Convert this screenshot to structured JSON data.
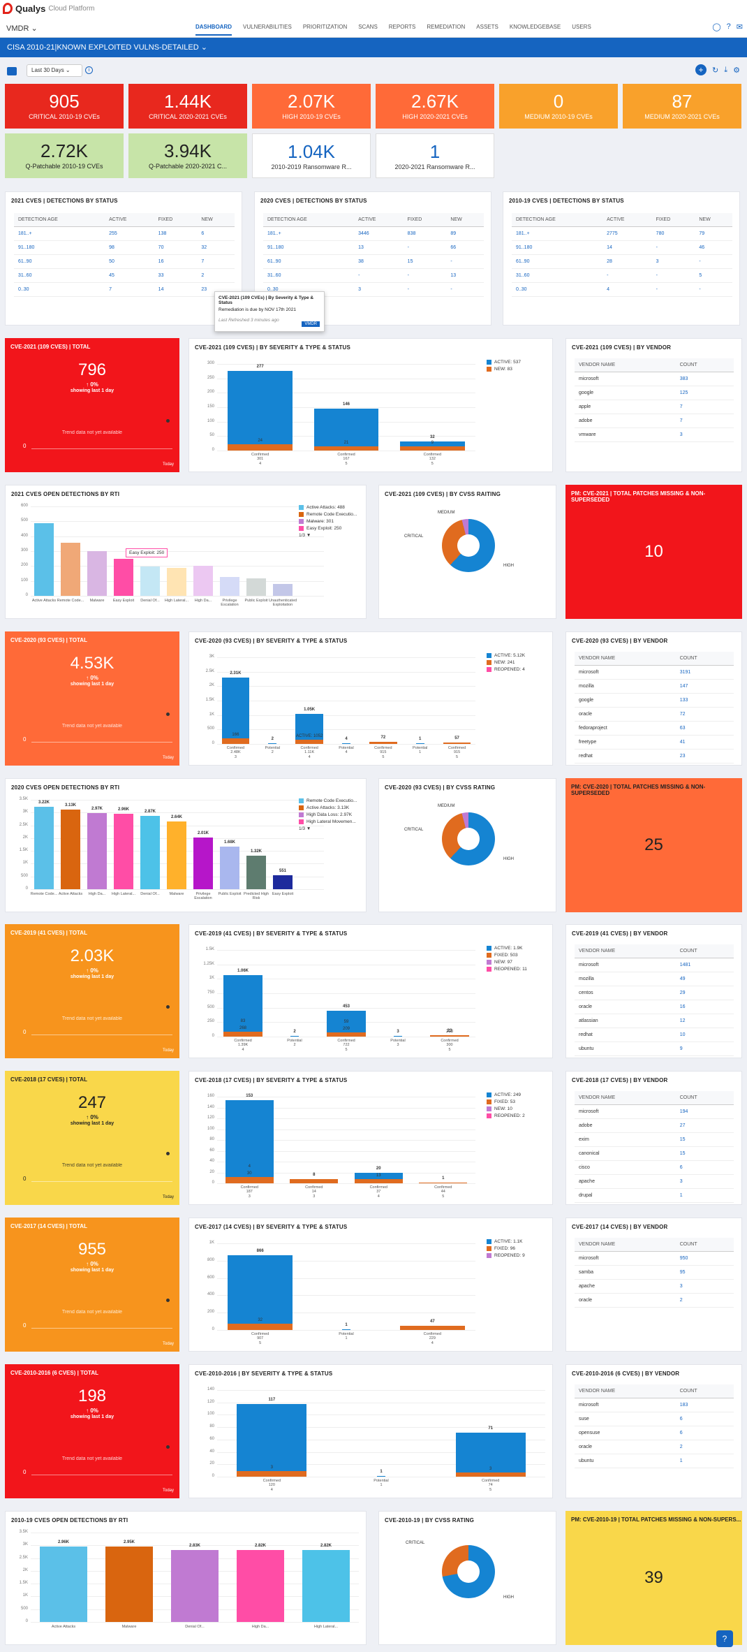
{
  "app": {
    "brand": "Qualys",
    "brand_sub": "Cloud Platform",
    "module": "VMDR ⌄"
  },
  "nav": [
    "DASHBOARD",
    "VULNERABILITIES",
    "PRIORITIZATION",
    "SCANS",
    "REPORTS",
    "REMEDIATION",
    "ASSETS",
    "KNOWLEDGEBASE",
    "USERS"
  ],
  "dashboard_title": "CISA 2010-21|KNOWN EXPLOITED VULNS-DETAILED ⌄",
  "range": "Last 30 Days ⌄",
  "kpis": [
    {
      "v": "905",
      "l": "CRITICAL 2010-19 CVEs",
      "c": "#e8281e"
    },
    {
      "v": "1.44K",
      "l": "CRITICAL 2020-2021 CVEs",
      "c": "#e8281e"
    },
    {
      "v": "2.07K",
      "l": "HIGH 2010-19 CVEs",
      "c": "#ff6a38"
    },
    {
      "v": "2.67K",
      "l": "HIGH 2020-2021 CVEs",
      "c": "#ff6a38"
    },
    {
      "v": "0",
      "l": "MEDIUM 2010-19 CVEs",
      "c": "#f9a12b"
    },
    {
      "v": "87",
      "l": "MEDIUM 2020-2021 CVEs",
      "c": "#f9a12b"
    },
    {
      "v": "2.72K",
      "l": "Q-Patchable 2010-19 CVEs",
      "c": "green"
    },
    {
      "v": "3.94K",
      "l": "Q-Patchable 2020-2021 C...",
      "c": "green"
    },
    {
      "v": "1.04K",
      "l": "2010-2019 Ransomware R...",
      "c": "lite"
    },
    {
      "v": "1",
      "l": "2020-2021 Ransomware R...",
      "c": "lite"
    }
  ],
  "status_tables": [
    {
      "title": "2021 CVES | DETECTIONS BY STATUS",
      "cols": [
        "DETECTION AGE",
        "ACTIVE",
        "FIXED",
        "NEW"
      ],
      "rows": [
        [
          "181..+",
          "255",
          "138",
          "6"
        ],
        [
          "91..180",
          "98",
          "70",
          "32"
        ],
        [
          "61..90",
          "50",
          "16",
          "7"
        ],
        [
          "31..60",
          "45",
          "33",
          "2"
        ],
        [
          "0..30",
          "7",
          "14",
          "23"
        ]
      ]
    },
    {
      "title": "2020 CVES | DETECTIONS BY STATUS",
      "cols": [
        "DETECTION AGE",
        "ACTIVE",
        "FIXED",
        "NEW"
      ],
      "rows": [
        [
          "181..+",
          "3446",
          "838",
          "89"
        ],
        [
          "91..180",
          "13",
          "-",
          "66"
        ],
        [
          "61..90",
          "38",
          "15",
          "-"
        ],
        [
          "31..60",
          "-",
          "-",
          "13"
        ],
        [
          "0..30",
          "3",
          "-",
          "-"
        ]
      ]
    },
    {
      "title": "2010-19 CVES | DETECTIONS BY STATUS",
      "cols": [
        "DETECTION AGE",
        "ACTIVE",
        "FIXED",
        "NEW"
      ],
      "rows": [
        [
          "181..+",
          "2775",
          "780",
          "79"
        ],
        [
          "91..180",
          "14",
          "-",
          "46"
        ],
        [
          "61..90",
          "28",
          "3",
          "-"
        ],
        [
          "31..60",
          "-",
          "-",
          "5"
        ],
        [
          "0..30",
          "4",
          "-",
          "-"
        ]
      ]
    }
  ],
  "tooltip": {
    "title": "CVE-2021 (109 CVEs) | By Severity & Type & Status",
    "body": "Remediation is due by NOV 17th 2021",
    "foot": "Last Refreshed 3 minutes ago",
    "btn": "VMDR"
  },
  "totals": [
    {
      "title": "CVE-2021 (109 CVES) | TOTAL",
      "value": "796",
      "c": "#f2151b"
    },
    {
      "title": "CVE-2020 (93 CVES) | TOTAL",
      "value": "4.53K",
      "c": "#ff6a38"
    },
    {
      "title": "CVE-2019 (41 CVES) | TOTAL",
      "value": "2.03K",
      "c": "#f7941d"
    },
    {
      "title": "CVE-2018 (17 CVES) | TOTAL",
      "value": "247",
      "c": "#f9d74a"
    },
    {
      "title": "CVE-2017 (14 CVES) | TOTAL",
      "value": "955",
      "c": "#f7941d"
    },
    {
      "title": "CVE-2010-2016 (6 CVES) | TOTAL",
      "value": "198",
      "c": "#f2151b"
    }
  ],
  "total_common": {
    "pct": "↑ 0%",
    "period": "showing last 1 day",
    "nodata": "Trend data not yet available",
    "today": "Today",
    "zero": "0"
  },
  "sev_charts": [
    {
      "title": "CVE-2021 (109 CVES) | BY SEVERITY & TYPE & STATUS",
      "legend": [
        "ACTIVE: 537",
        "NEW: 83"
      ],
      "yticks": [
        "300",
        "250",
        "200",
        "150",
        "100",
        "50",
        "0"
      ],
      "bars": [
        {
          "total": "277",
          "seg": [
            "24"
          ],
          "x": "Confirmed",
          "xv": "301",
          "g": "4"
        },
        {
          "total": "146",
          "seg": [
            "21"
          ],
          "x": "Confirmed",
          "xv": "167",
          "g": "5"
        },
        {
          "total": "32",
          "seg": [
            "9"
          ],
          "x": "Confirmed",
          "xv": "132",
          "g": "5"
        }
      ]
    },
    {
      "title": "CVE-2020 (93 CVES) | BY SEVERITY & TYPE & STATUS",
      "legend": [
        "ACTIVE: 5.12K",
        "NEW: 241",
        "REOPENED: 4"
      ],
      "yticks": [
        "3K",
        "2.5K",
        "2K",
        "1.5K",
        "1K",
        "500",
        "0"
      ],
      "bars": [
        {
          "total": "2.31K",
          "seg": [
            "166"
          ],
          "x": "Confirmed",
          "xv": "2.48K",
          "g": "3"
        },
        {
          "total": "2",
          "x": "Potential",
          "xv": "2",
          "g": ""
        },
        {
          "total": "1.05K",
          "seg": [
            "ACTIVE: 1052"
          ],
          "x": "Confirmed",
          "xv": "1.11K",
          "g": "4"
        },
        {
          "total": "4",
          "x": "Potential",
          "xv": "4",
          "g": ""
        },
        {
          "total": "72",
          "x": "Confirmed",
          "xv": "915",
          "g": "5"
        },
        {
          "total": "1",
          "x": "Potential",
          "xv": "1",
          "g": ""
        },
        {
          "total": "57",
          "x": "Confirmed",
          "xv": "915",
          "g": "5"
        }
      ]
    },
    {
      "title": "CVE-2019 (41 CVES) | BY SEVERITY & TYPE & STATUS",
      "legend": [
        "ACTIVE: 1.9K",
        "FIXED: 503",
        "NEW: 97",
        "REOPENED: 11"
      ],
      "yticks": [
        "1.5K",
        "1.25K",
        "1K",
        "750",
        "500",
        "250",
        "0"
      ],
      "bars": [
        {
          "total": "1.06K",
          "seg": [
            "268",
            "83"
          ],
          "x": "Confirmed",
          "xv": "1.39K",
          "g": "4"
        },
        {
          "total": "2",
          "x": "Potential",
          "xv": "2",
          "g": ""
        },
        {
          "total": "453",
          "seg": [
            "209",
            "59"
          ],
          "x": "Confirmed",
          "xv": "722",
          "g": "5"
        },
        {
          "total": "3",
          "x": "Potential",
          "xv": "3",
          "g": ""
        },
        {
          "total": "23",
          "seg": [
            "213"
          ],
          "x": "Confirmed",
          "xv": "300",
          "g": "5"
        }
      ]
    },
    {
      "title": "CVE-2018 (17 CVES) | BY SEVERITY & TYPE & STATUS",
      "legend": [
        "ACTIVE: 249",
        "FIXED: 53",
        "NEW: 10",
        "REOPENED: 2"
      ],
      "yticks": [
        "160",
        "140",
        "120",
        "100",
        "80",
        "60",
        "40",
        "20",
        "0"
      ],
      "bars": [
        {
          "total": "153",
          "seg": [
            "30",
            "4"
          ],
          "x": "Confirmed",
          "xv": "187",
          "g": "3"
        },
        {
          "total": "8",
          "x": "Confirmed",
          "xv": "14",
          "g": "3"
        },
        {
          "total": "20",
          "seg": [
            "13"
          ],
          "x": "Confirmed",
          "xv": "37",
          "g": "4"
        },
        {
          "total": "1",
          "x": "Confirmed",
          "xv": "44",
          "g": "5"
        }
      ]
    },
    {
      "title": "CVE-2017 (14 CVES) | BY SEVERITY & TYPE & STATUS",
      "legend": [
        "ACTIVE: 1.1K",
        "FIXED: 96",
        "REOPENED: 9"
      ],
      "yticks": [
        "1K",
        "800",
        "600",
        "400",
        "200",
        "0"
      ],
      "bars": [
        {
          "total": "866",
          "seg": [
            "32"
          ],
          "x": "Confirmed",
          "xv": "907",
          "g": "5"
        },
        {
          "total": "1",
          "x": "Potential",
          "xv": "1",
          "g": ""
        },
        {
          "total": "47",
          "x": "Confirmed",
          "xv": "229",
          "g": "4"
        }
      ]
    },
    {
      "title": "CVE-2010-2016 | BY SEVERITY & TYPE & STATUS",
      "legend": [],
      "yticks": [
        "140",
        "120",
        "100",
        "80",
        "60",
        "40",
        "20",
        "0"
      ],
      "bars": [
        {
          "total": "117",
          "seg": [
            "3"
          ],
          "x": "Confirmed",
          "xv": "120",
          "g": "4"
        },
        {
          "total": "1",
          "x": "Potential",
          "xv": "1",
          "g": ""
        },
        {
          "total": "71",
          "seg": [
            "3"
          ],
          "x": "Confirmed",
          "xv": "74",
          "g": "5"
        }
      ]
    }
  ],
  "vendor_tables": [
    {
      "title": "CVE-2021 (109 CVES) | BY VENDOR",
      "rows": [
        [
          "microsoft",
          "383"
        ],
        [
          "google",
          "125"
        ],
        [
          "apple",
          "7"
        ],
        [
          "adobe",
          "7"
        ],
        [
          "vmware",
          "3"
        ]
      ]
    },
    {
      "title": "CVE-2020 (93 CVES) | BY VENDOR",
      "rows": [
        [
          "microsoft",
          "3191"
        ],
        [
          "mozilla",
          "147"
        ],
        [
          "google",
          "133"
        ],
        [
          "oracle",
          "72"
        ],
        [
          "fedoraproject",
          "63"
        ],
        [
          "freetype",
          "41"
        ],
        [
          "redhat",
          "23"
        ]
      ]
    },
    {
      "title": "CVE-2019 (41 CVES) | BY VENDOR",
      "rows": [
        [
          "microsoft",
          "1481"
        ],
        [
          "mozilla",
          "49"
        ],
        [
          "centos",
          "29"
        ],
        [
          "oracle",
          "16"
        ],
        [
          "atlassian",
          "12"
        ],
        [
          "redhat",
          "10"
        ],
        [
          "ubuntu",
          "9"
        ]
      ]
    },
    {
      "title": "CVE-2018 (17 CVES) | BY VENDOR",
      "rows": [
        [
          "microsoft",
          "194"
        ],
        [
          "adobe",
          "27"
        ],
        [
          "exim",
          "15"
        ],
        [
          "canonical",
          "15"
        ],
        [
          "cisco",
          "6"
        ],
        [
          "apache",
          "3"
        ],
        [
          "drupal",
          "1"
        ]
      ]
    },
    {
      "title": "CVE-2017 (14 CVES) | BY VENDOR",
      "rows": [
        [
          "microsoft",
          "950"
        ],
        [
          "samba",
          "95"
        ],
        [
          "apache",
          "3"
        ],
        [
          "oracle",
          "2"
        ]
      ]
    },
    {
      "title": "CVE-2010-2016 (6 CVES) | BY VENDOR",
      "rows": [
        [
          "microsoft",
          "183"
        ],
        [
          "suse",
          "6"
        ],
        [
          "opensuse",
          "6"
        ],
        [
          "oracle",
          "2"
        ],
        [
          "ubuntu",
          "1"
        ]
      ]
    }
  ],
  "vendor_cols": [
    "VENDOR NAME",
    "COUNT"
  ],
  "rti": [
    {
      "title": "2021 CVES OPEN DETECTIONS BY RTI",
      "yticks": [
        "600",
        "500",
        "400",
        "300",
        "200",
        "100",
        "0"
      ],
      "cats": [
        "Active Attacks",
        "Remote Code...",
        "Malware",
        "Easy Exploit",
        "Denial Of...",
        "High Lateral...",
        "High Da...",
        "Privilege Escalation",
        "Public Exploit",
        "Unauthenticated Exploitation"
      ],
      "vals": [
        488,
        358,
        301,
        250,
        195,
        187,
        201,
        127,
        116,
        81
      ],
      "legend": [
        "Active Attacks: 488",
        "Remote Code Executio...",
        "Malware: 301",
        "Easy Exploit: 250"
      ],
      "tip": "Easy Exploit: 250",
      "page": "1/3 ▼"
    },
    {
      "title": "2020 CVES OPEN DETECTIONS BY RTI",
      "yticks": [
        "3.5K",
        "3K",
        "2.5K",
        "2K",
        "1.5K",
        "1K",
        "500",
        "0"
      ],
      "cats": [
        "Remote Code...",
        "Active Attacks",
        "High Da...",
        "High Lateral...",
        "Denial Of...",
        "Malware",
        "Privilege Escalation",
        "Public Exploit",
        "Predicted High Risk",
        "Easy Exploit"
      ],
      "vals": [
        3220,
        3130,
        2970,
        2960,
        2870,
        2640,
        2010,
        1680,
        1320,
        551
      ],
      "labels": [
        "3.22K",
        "3.13K",
        "2.97K",
        "2.96K",
        "2.87K",
        "2.64K",
        "2.01K",
        "1.68K",
        "1.32K",
        "551"
      ],
      "legend": [
        "Remote Code Executio...",
        "Active Attacks: 3.13K",
        "High Data Loss: 2.97K",
        "High Lateral Movemen..."
      ],
      "page": "1/3 ▼"
    },
    {
      "title": "2010-19 CVES OPEN DETECTIONS BY RTI",
      "yticks": [
        "3.5K",
        "3K",
        "2.5K",
        "2K",
        "1.5K",
        "1K",
        "500",
        "0"
      ],
      "cats": [
        "Active Attacks",
        "Malware",
        "Denial Of...",
        "High Da...",
        "High Lateral..."
      ],
      "vals": [
        2960,
        2950,
        2830,
        2820,
        2820
      ],
      "labels": [
        "2.96K",
        "2.95K",
        "2.83K",
        "2.82K",
        "2.82K"
      ]
    }
  ],
  "rti_colors": [
    "#5bc0e8",
    "#d9650f",
    "#c07ad2",
    "#ff4da6",
    "#4dc2e8",
    "#ffb12b",
    "#b616c9",
    "#a9b7ee",
    "#5e7c6f",
    "#1d2a9c"
  ],
  "rti1_colors": [
    "#5bc0e8",
    "#f0a877",
    "#d9b6e3",
    "#ff4da6",
    "#c4e7f5",
    "#ffe4b3",
    "#ecc8f2",
    "#d5dbf7",
    "#d3d9d7",
    "#c3c7e8"
  ],
  "cvss": [
    {
      "title": "CVE-2021 (109 CVES) | BY CVSS RAITING",
      "labels": [
        "MEDIUM",
        "CRITICAL",
        "HIGH"
      ]
    },
    {
      "title": "CVE-2020 (93 CVES) | BY CVSS RATING",
      "labels": [
        "MEDIUM",
        "CRITICAL",
        "HIGH"
      ]
    },
    {
      "title": "CVE-2010-19 | BY CVSS RATING",
      "labels": [
        "CRITICAL",
        "HIGH"
      ]
    }
  ],
  "pm": [
    {
      "title": "PM: CVE-2021 | TOTAL PATCHES MISSING & NON-SUPERSEDED",
      "value": "10",
      "c": "#f2151b",
      "fg": "#fff"
    },
    {
      "title": "PM: CVE-2020 | TOTAL PATCHES MISSING & NON-SUPERSEDED",
      "value": "25",
      "c": "#ff6a38",
      "fg": "#222"
    },
    {
      "title": "PM: CVE-2010-19 | TOTAL PATCHES MISSING & NON-SUPERS...",
      "value": "39",
      "c": "#f9d74a",
      "fg": "#222"
    }
  ],
  "colors": {
    "active": "#1584d2",
    "new": "#e06b1f",
    "fixed": "#e06b1f",
    "reopened": "#c07ad2",
    "accent": "#1564c0"
  }
}
